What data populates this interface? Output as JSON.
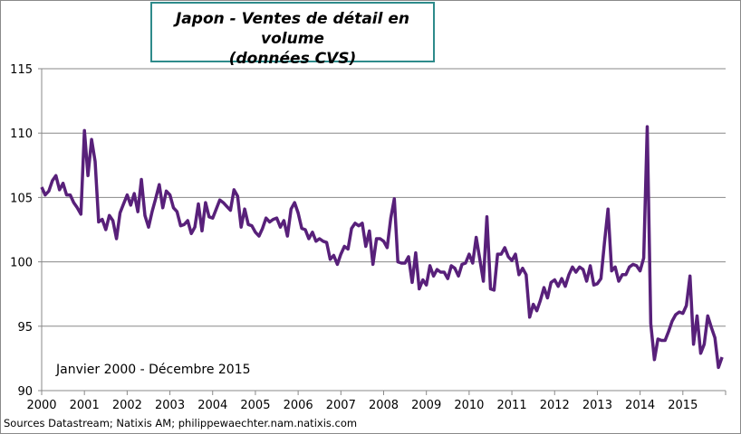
{
  "chart_data": {
    "type": "line",
    "title": "Japon - Ventes de détail en volume",
    "subtitle": "(données CVS)",
    "annotation": "Janvier 2000 - Décembre 2015",
    "source": "Sources  Datastream; Natixis AM; philippewaechter.nam.natixis.com",
    "ylim": [
      90,
      115
    ],
    "yticks": [
      90,
      95,
      100,
      105,
      110,
      115
    ],
    "xticks": [
      "2000",
      "2001",
      "2002",
      "2003",
      "2004",
      "2005",
      "2006",
      "2007",
      "2008",
      "2009",
      "2010",
      "2011",
      "2012",
      "2013",
      "2014",
      "2015"
    ],
    "grid": true,
    "line_color": "#58207a",
    "x_start": "2000-01",
    "frequency": "monthly",
    "values": [
      105.8,
      105.2,
      105.5,
      106.3,
      106.7,
      105.6,
      106.1,
      105.2,
      105.2,
      104.6,
      104.2,
      103.7,
      110.2,
      106.7,
      109.5,
      107.8,
      103.1,
      103.3,
      102.5,
      103.6,
      103.2,
      101.8,
      103.8,
      104.5,
      105.2,
      104.4,
      105.3,
      103.9,
      106.4,
      103.6,
      102.7,
      103.9,
      104.9,
      106.0,
      104.2,
      105.5,
      105.2,
      104.2,
      103.9,
      102.8,
      102.9,
      103.2,
      102.2,
      102.7,
      104.5,
      102.4,
      104.6,
      103.5,
      103.4,
      104.1,
      104.8,
      104.6,
      104.3,
      104.0,
      105.6,
      105.1,
      102.7,
      104.1,
      102.9,
      102.8,
      102.3,
      102.0,
      102.6,
      103.4,
      103.1,
      103.3,
      103.4,
      102.7,
      103.2,
      102.0,
      104.1,
      104.6,
      103.8,
      102.6,
      102.5,
      101.8,
      102.3,
      101.6,
      101.8,
      101.6,
      101.5,
      100.2,
      100.5,
      99.8,
      100.6,
      101.2,
      101.0,
      102.6,
      103.0,
      102.8,
      103.0,
      101.2,
      102.4,
      99.8,
      101.8,
      101.8,
      101.6,
      101.1,
      103.4,
      104.9,
      100.0,
      99.9,
      99.9,
      100.4,
      98.4,
      100.7,
      97.9,
      98.6,
      98.2,
      99.7,
      98.9,
      99.4,
      99.2,
      99.2,
      98.7,
      99.7,
      99.5,
      98.9,
      99.8,
      99.9,
      100.6,
      99.9,
      101.9,
      100.2,
      98.5,
      103.5,
      97.9,
      97.8,
      100.6,
      100.6,
      101.1,
      100.4,
      100.1,
      100.6,
      99.0,
      99.5,
      99.0,
      95.7,
      96.7,
      96.2,
      97.0,
      98.0,
      97.2,
      98.4,
      98.6,
      98.1,
      98.7,
      98.1,
      99.0,
      99.6,
      99.2,
      99.6,
      99.4,
      98.5,
      99.7,
      98.2,
      98.3,
      98.7,
      101.5,
      104.1,
      99.3,
      99.6,
      98.5,
      99.0,
      99.0,
      99.6,
      99.8,
      99.7,
      99.3,
      100.3,
      110.5,
      95.2,
      92.4,
      94.0,
      93.9,
      93.9,
      94.6,
      95.4,
      95.9,
      96.1,
      96.0,
      96.6,
      98.9,
      93.6,
      95.8,
      92.9,
      93.6,
      95.8,
      94.9,
      94.1,
      91.8,
      92.6
    ]
  }
}
